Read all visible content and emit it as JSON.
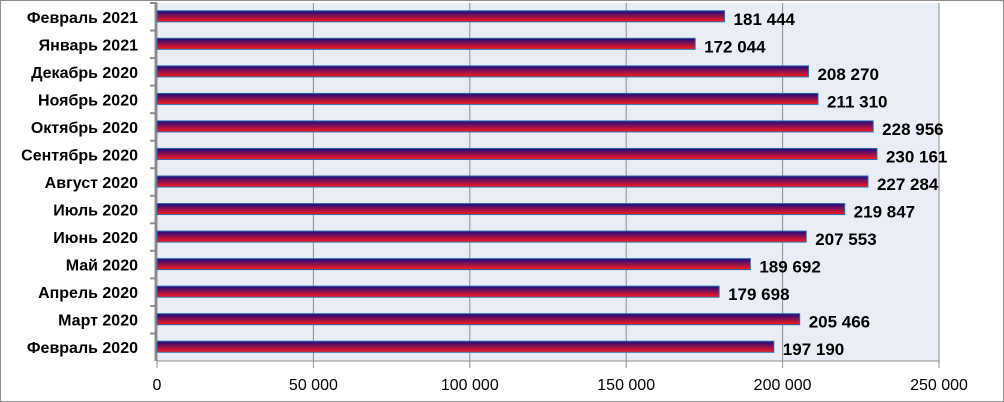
{
  "chart_data": {
    "type": "bar",
    "orientation": "horizontal",
    "title": "",
    "xlabel": "",
    "ylabel": "",
    "categories": [
      "Февраль 2021",
      "Январь 2021",
      "Декабрь 2020",
      "Ноябрь 2020",
      "Октябрь 2020",
      "Сентябрь 2020",
      "Август 2020",
      "Июль 2020",
      "Июнь 2020",
      "Май 2020",
      "Апрель 2020",
      "Март 2020",
      "Февраль 2020"
    ],
    "values": [
      181444,
      172044,
      208270,
      211310,
      228956,
      230161,
      227284,
      219847,
      207553,
      189692,
      179698,
      205466,
      197190
    ],
    "value_labels": [
      "181 444",
      "172 044",
      "208 270",
      "211 310",
      "228 956",
      "230 161",
      "227 284",
      "219 847",
      "207 553",
      "189 692",
      "179 698",
      "205 466",
      "197 190"
    ],
    "xlim": [
      0,
      250000
    ],
    "xticks": [
      0,
      50000,
      100000,
      150000,
      200000,
      250000
    ],
    "xtick_labels": [
      "0",
      "50 000",
      "100 000",
      "150 000",
      "200 000",
      "250 000"
    ],
    "grid": true,
    "legend": "none",
    "colors": {
      "bar_top": "#1a0a80",
      "bar_bottom": "#ff1a1a",
      "plot_bg": "#e9edf6",
      "grid": "#8c8c8c"
    }
  }
}
